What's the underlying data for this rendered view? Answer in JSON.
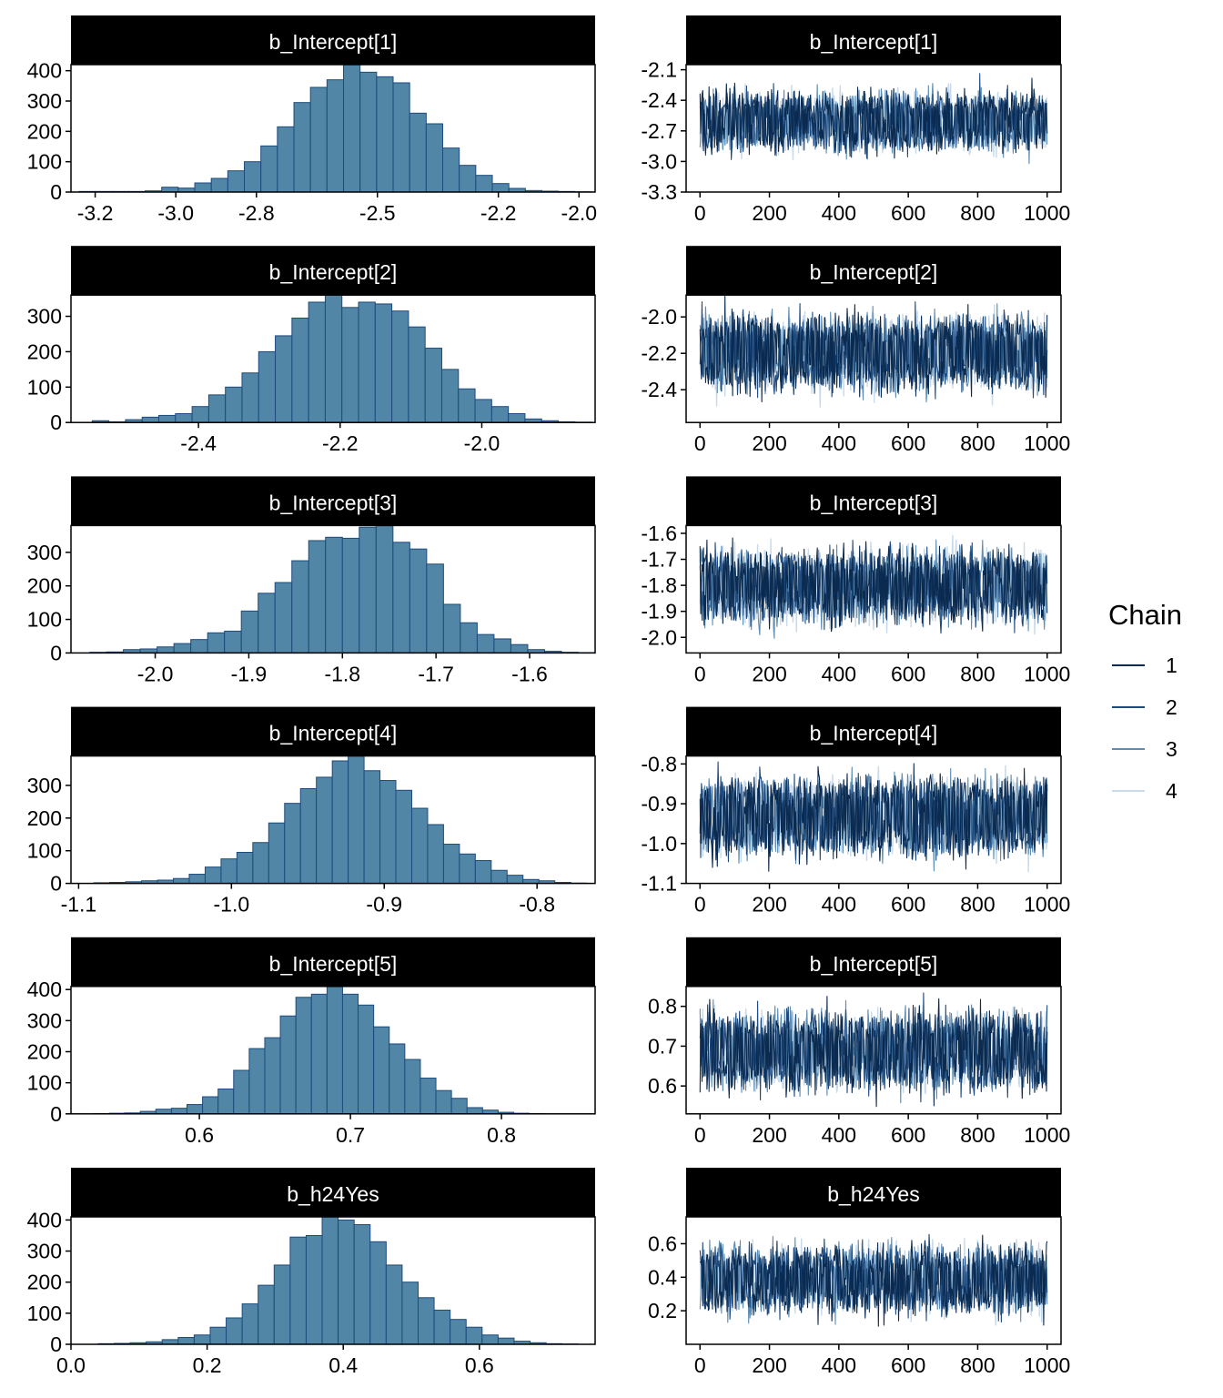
{
  "chart_data": {
    "type": "mcmc-diagnostics",
    "legend": {
      "title": "Chain",
      "placement": "right",
      "chains": [
        {
          "label": "1",
          "color": "#0b2a4f"
        },
        {
          "label": "2",
          "color": "#1e4a7e"
        },
        {
          "label": "3",
          "color": "#5d8db3"
        },
        {
          "label": "4",
          "color": "#c9dbea"
        }
      ]
    },
    "style": {
      "bar_fill": "#5286a6",
      "bar_stroke": "#1e4a7e",
      "strip_fill": "#000000",
      "strip_text": "#ffffff"
    },
    "panels": [
      {
        "name": "b_Intercept[1]",
        "hist": {
          "type": "bar",
          "xlim": [
            -3.26,
            -1.96
          ],
          "ylim": [
            0,
            420
          ],
          "xticks": [
            -3.2,
            -3.0,
            -2.8,
            -2.5,
            -2.2,
            -2.0
          ],
          "xtick_labels": [
            "-3.2",
            "-3.0",
            "-2.8",
            "-2.5",
            "-2.2",
            "-2.0"
          ],
          "yticks": [
            0,
            100,
            200,
            300,
            400
          ],
          "bin_start": -3.24,
          "bin_width": 0.041,
          "counts": [
            2,
            2,
            2,
            2,
            4,
            16,
            13,
            30,
            45,
            70,
            100,
            152,
            215,
            295,
            345,
            370,
            420,
            395,
            380,
            360,
            260,
            225,
            145,
            88,
            55,
            28,
            12,
            5,
            3,
            2,
            1
          ]
        },
        "trace": {
          "type": "line",
          "xlim": [
            -40,
            1040
          ],
          "ylim": [
            -3.3,
            -2.05
          ],
          "xticks": [
            0,
            200,
            400,
            600,
            800,
            1000
          ],
          "yticks": [
            -3.3,
            -3.0,
            -2.7,
            -2.4,
            -2.1
          ],
          "ytick_labels": [
            "-3.3",
            "-3.0",
            "-2.7",
            "-2.4",
            "-2.1"
          ],
          "mean": -2.62,
          "sd": 0.14,
          "upper": -2.45,
          "lower": -2.78
        }
      },
      {
        "name": "b_Intercept[2]",
        "hist": {
          "type": "bar",
          "xlim": [
            -2.58,
            -1.84
          ],
          "ylim": [
            0,
            360
          ],
          "xticks": [
            -2.4,
            -2.2,
            -2.0
          ],
          "xtick_labels": [
            "-2.4",
            "-2.2",
            "-2.0"
          ],
          "yticks": [
            0,
            100,
            200,
            300
          ],
          "bin_start": -2.55,
          "bin_width": 0.0235,
          "counts": [
            5,
            2,
            8,
            15,
            20,
            25,
            45,
            78,
            100,
            140,
            200,
            245,
            295,
            340,
            360,
            325,
            340,
            335,
            315,
            270,
            210,
            150,
            95,
            65,
            45,
            25,
            10,
            5,
            2,
            1
          ]
        },
        "trace": {
          "type": "line",
          "xlim": [
            -40,
            1040
          ],
          "ylim": [
            -2.58,
            -1.88
          ],
          "xticks": [
            0,
            200,
            400,
            600,
            800,
            1000
          ],
          "yticks": [
            -2.4,
            -2.2,
            -2.0
          ],
          "ytick_labels": [
            "-2.4",
            "-2.2",
            "-2.0"
          ],
          "mean": -2.19,
          "sd": 0.1,
          "upper": -2.08,
          "lower": -2.31
        }
      },
      {
        "name": "b_Intercept[3]",
        "hist": {
          "type": "bar",
          "xlim": [
            -2.09,
            -1.53
          ],
          "ylim": [
            0,
            380
          ],
          "xticks": [
            -2.0,
            -1.9,
            -1.8,
            -1.7,
            -1.6
          ],
          "xtick_labels": [
            "-2.0",
            "-1.9",
            "-1.8",
            "-1.7",
            "-1.6"
          ],
          "yticks": [
            0,
            100,
            200,
            300
          ],
          "bin_start": -2.07,
          "bin_width": 0.018,
          "counts": [
            2,
            3,
            10,
            12,
            18,
            28,
            40,
            60,
            65,
            125,
            178,
            210,
            275,
            335,
            345,
            342,
            375,
            380,
            330,
            310,
            265,
            145,
            90,
            55,
            42,
            25,
            10,
            5,
            2,
            1
          ]
        },
        "trace": {
          "type": "line",
          "xlim": [
            -40,
            1040
          ],
          "ylim": [
            -2.06,
            -1.57
          ],
          "xticks": [
            0,
            200,
            400,
            600,
            800,
            1000
          ],
          "yticks": [
            -2.0,
            -1.9,
            -1.8,
            -1.7,
            -1.6
          ],
          "ytick_labels": [
            "-2.0",
            "-1.9",
            "-1.8",
            "-1.7",
            "-1.6"
          ],
          "mean": -1.8,
          "sd": 0.07,
          "upper": -1.72,
          "lower": -1.88
        }
      },
      {
        "name": "b_Intercept[4]",
        "hist": {
          "type": "bar",
          "xlim": [
            -1.105,
            -0.762
          ],
          "ylim": [
            0,
            390
          ],
          "xticks": [
            -1.1,
            -1.0,
            -0.9,
            -0.8
          ],
          "xtick_labels": [
            "-1.1",
            "-1.0",
            "-0.9",
            "-0.8"
          ],
          "yticks": [
            0,
            100,
            200,
            300
          ],
          "bin_start": -1.09,
          "bin_width": 0.0104,
          "counts": [
            2,
            3,
            5,
            8,
            10,
            15,
            28,
            50,
            75,
            95,
            125,
            185,
            245,
            290,
            325,
            375,
            390,
            345,
            315,
            285,
            230,
            180,
            120,
            90,
            70,
            40,
            25,
            12,
            8,
            3,
            1
          ]
        },
        "trace": {
          "type": "line",
          "xlim": [
            -40,
            1040
          ],
          "ylim": [
            -1.1,
            -0.78
          ],
          "xticks": [
            0,
            200,
            400,
            600,
            800,
            1000
          ],
          "yticks": [
            -1.1,
            -1.0,
            -0.9,
            -0.8
          ],
          "ytick_labels": [
            "-1.1",
            "-1.0",
            "-0.9",
            "-0.8"
          ],
          "mean": -0.932,
          "sd": 0.048,
          "upper": -0.875,
          "lower": -0.99
        }
      },
      {
        "name": "b_Intercept[5]",
        "hist": {
          "type": "bar",
          "xlim": [
            0.515,
            0.862
          ],
          "ylim": [
            0,
            410
          ],
          "xticks": [
            0.6,
            0.7,
            0.8
          ],
          "xtick_labels": [
            "0.6",
            "0.7",
            "0.8"
          ],
          "yticks": [
            0,
            100,
            200,
            300,
            400
          ],
          "bin_start": 0.53,
          "bin_width": 0.0103,
          "counts": [
            1,
            2,
            3,
            8,
            15,
            18,
            30,
            55,
            80,
            140,
            210,
            245,
            315,
            375,
            385,
            410,
            385,
            350,
            280,
            225,
            175,
            115,
            75,
            50,
            20,
            12,
            5,
            2,
            1
          ]
        },
        "trace": {
          "type": "line",
          "xlim": [
            -40,
            1040
          ],
          "ylim": [
            0.53,
            0.85
          ],
          "xticks": [
            0,
            200,
            400,
            600,
            800,
            1000
          ],
          "yticks": [
            0.6,
            0.7,
            0.8
          ],
          "ytick_labels": [
            "0.6",
            "0.7",
            "0.8"
          ],
          "mean": 0.69,
          "sd": 0.048,
          "upper": 0.745,
          "lower": 0.635
        }
      },
      {
        "name": "b_h24Yes",
        "hist": {
          "type": "bar",
          "xlim": [
            0.0,
            0.77
          ],
          "ylim": [
            0,
            410
          ],
          "xticks": [
            0.0,
            0.2,
            0.4,
            0.6
          ],
          "xtick_labels": [
            "0.0",
            "0.2",
            "0.4",
            "0.6"
          ],
          "yticks": [
            0,
            100,
            200,
            300,
            400
          ],
          "bin_start": 0.04,
          "bin_width": 0.0235,
          "counts": [
            2,
            3,
            5,
            8,
            15,
            22,
            30,
            55,
            85,
            130,
            190,
            255,
            345,
            350,
            410,
            400,
            385,
            330,
            255,
            200,
            150,
            110,
            80,
            55,
            30,
            20,
            10,
            5,
            2,
            1
          ]
        },
        "trace": {
          "type": "line",
          "xlim": [
            -40,
            1040
          ],
          "ylim": [
            0.0,
            0.76
          ],
          "xticks": [
            0,
            200,
            400,
            600,
            800,
            1000
          ],
          "yticks": [
            0.2,
            0.4,
            0.6
          ],
          "ytick_labels": [
            "0.2",
            "0.4",
            "0.6"
          ],
          "mean": 0.39,
          "sd": 0.1,
          "upper": 0.5,
          "lower": 0.28
        }
      }
    ]
  }
}
